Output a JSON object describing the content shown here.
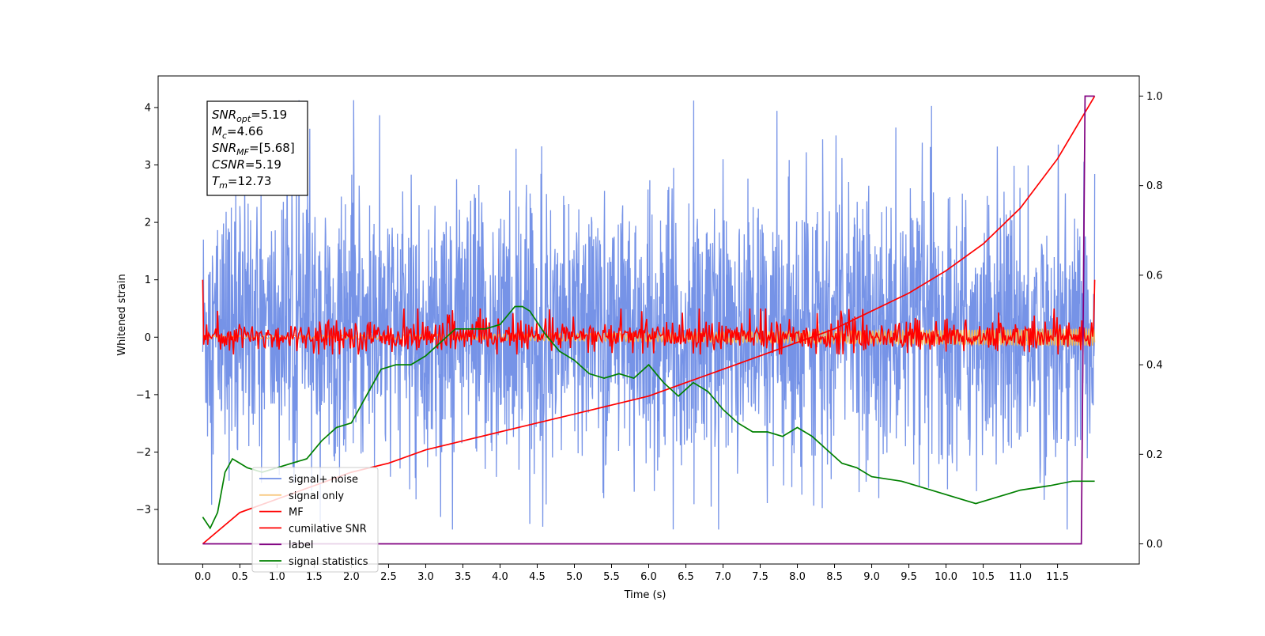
{
  "chart_data": {
    "type": "line",
    "title": "",
    "xlabel": "Time (s)",
    "ylabel": "Whitened strain",
    "xlim": [
      -0.6,
      12.6
    ],
    "ylim_left": [
      -3.95,
      4.55
    ],
    "ylim_right": [
      -0.045,
      1.045
    ],
    "x_ticks": [
      "0.0",
      "0.5",
      "1.0",
      "1.5",
      "2.0",
      "2.5",
      "3.0",
      "3.5",
      "4.0",
      "4.5",
      "5.0",
      "5.5",
      "6.0",
      "6.5",
      "7.0",
      "7.5",
      "8.0",
      "8.5",
      "9.0",
      "9.5",
      "10.0",
      "10.5",
      "11.0",
      "11.5"
    ],
    "y_ticks_left": [
      "4",
      "3",
      "2",
      "1",
      "0",
      "−1",
      "−2",
      "−3"
    ],
    "y_ticks_right": [
      "1.0",
      "0.8",
      "0.6",
      "0.4",
      "0.2",
      "0.0"
    ],
    "grid": false,
    "legend_position": "lower-left",
    "info_box": {
      "lines": [
        {
          "main": "SNR",
          "sub": "opt",
          "rest": "=5.19"
        },
        {
          "main": "M",
          "sub": "c",
          "rest": "=4.66"
        },
        {
          "main": "SNR",
          "sub": "MF",
          "rest": "=[5.68]"
        },
        {
          "main": "CSNR",
          "sub": "",
          "rest": "=5.19"
        },
        {
          "main": "T",
          "sub": "m",
          "rest": "=12.73"
        }
      ]
    },
    "series": [
      {
        "name": "signal+ noise",
        "axis": "left",
        "color": "#6f8de6",
        "kind": "noise_band",
        "x_range": [
          0,
          12.0
        ],
        "approx_range": [
          -2.9,
          4.2
        ]
      },
      {
        "name": "signal only",
        "axis": "left",
        "color": "#f5b85a",
        "kind": "chirp",
        "x_range": [
          0,
          12.0
        ],
        "approx_amplitude": [
          0.02,
          0.15
        ]
      },
      {
        "name": "MF",
        "axis": "left",
        "color": "#ff0000",
        "kind": "matched_filter",
        "x_range": [
          0,
          12.0
        ],
        "approx_range": [
          -0.3,
          0.5
        ]
      },
      {
        "name": "cumilative SNR",
        "axis": "right",
        "color": "#ff0000",
        "x": [
          0.0,
          0.5,
          1.0,
          1.5,
          2.0,
          2.5,
          3.0,
          3.5,
          4.0,
          4.5,
          5.0,
          5.5,
          6.0,
          6.5,
          7.0,
          7.5,
          8.0,
          8.5,
          9.0,
          9.5,
          10.0,
          10.5,
          11.0,
          11.5,
          12.0
        ],
        "values": [
          0.0,
          0.07,
          0.1,
          0.13,
          0.16,
          0.18,
          0.21,
          0.23,
          0.25,
          0.27,
          0.29,
          0.31,
          0.33,
          0.36,
          0.39,
          0.42,
          0.45,
          0.48,
          0.52,
          0.56,
          0.61,
          0.67,
          0.75,
          0.86,
          1.0
        ]
      },
      {
        "name": "label",
        "axis": "right",
        "color": "#800080",
        "x": [
          0.0,
          11.82,
          11.87,
          12.0
        ],
        "values": [
          0.0,
          0.0,
          1.0,
          1.0
        ]
      },
      {
        "name": "signal statistics",
        "axis": "right",
        "color": "#008000",
        "x": [
          0.0,
          0.1,
          0.2,
          0.3,
          0.4,
          0.5,
          0.6,
          0.8,
          1.0,
          1.2,
          1.4,
          1.6,
          1.8,
          2.0,
          2.2,
          2.3,
          2.4,
          2.6,
          2.8,
          3.0,
          3.2,
          3.4,
          3.6,
          3.8,
          4.0,
          4.2,
          4.3,
          4.4,
          4.6,
          4.8,
          5.0,
          5.2,
          5.4,
          5.6,
          5.8,
          6.0,
          6.2,
          6.4,
          6.6,
          6.8,
          7.0,
          7.2,
          7.4,
          7.6,
          7.8,
          8.0,
          8.2,
          8.4,
          8.6,
          8.8,
          9.0,
          9.4,
          9.8,
          10.2,
          10.4,
          10.6,
          10.8,
          11.0,
          11.4,
          11.7,
          12.0
        ],
        "values": [
          0.06,
          0.035,
          0.07,
          0.16,
          0.19,
          0.18,
          0.17,
          0.16,
          0.17,
          0.18,
          0.19,
          0.23,
          0.26,
          0.27,
          0.33,
          0.36,
          0.39,
          0.4,
          0.4,
          0.42,
          0.45,
          0.48,
          0.48,
          0.48,
          0.49,
          0.53,
          0.53,
          0.52,
          0.47,
          0.43,
          0.41,
          0.38,
          0.37,
          0.38,
          0.37,
          0.4,
          0.36,
          0.33,
          0.36,
          0.34,
          0.3,
          0.27,
          0.25,
          0.25,
          0.24,
          0.26,
          0.24,
          0.21,
          0.18,
          0.17,
          0.15,
          0.14,
          0.12,
          0.1,
          0.09,
          0.1,
          0.11,
          0.12,
          0.13,
          0.14,
          0.14
        ]
      }
    ]
  }
}
